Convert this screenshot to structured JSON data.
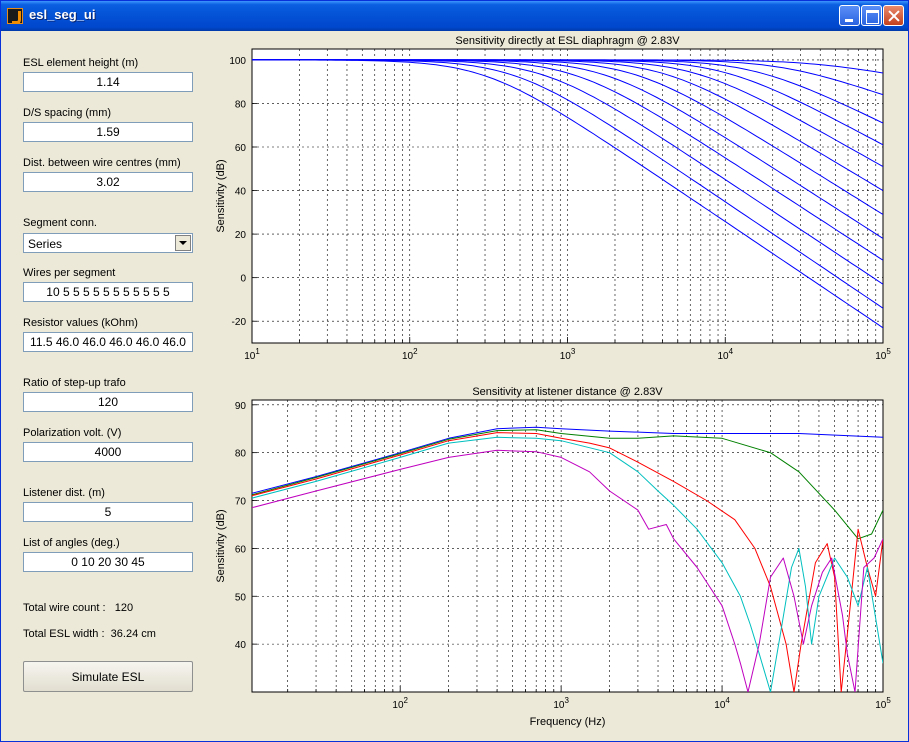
{
  "window": {
    "title": "esl_seg_ui"
  },
  "fields": {
    "height": {
      "label": "ESL element height (m)",
      "value": "1.14"
    },
    "ds": {
      "label": "D/S spacing (mm)",
      "value": "1.59"
    },
    "wire_dist": {
      "label": "Dist. between wire centres (mm)",
      "value": "3.02"
    },
    "segment_conn": {
      "label": "Segment conn.",
      "value": "Series"
    },
    "wires_per_seg": {
      "label": "Wires per segment",
      "value": "10 5 5 5 5 5 5 5 5 5 5 5"
    },
    "resistors": {
      "label": "Resistor values (kOhm)",
      "value": "11.5 46.0 46.0 46.0 46.0 46.0"
    },
    "trafo": {
      "label": "Ratio of step-up trafo",
      "value": "120"
    },
    "polarization": {
      "label": "Polarization volt. (V)",
      "value": "4000"
    },
    "listener": {
      "label": "Listener dist. (m)",
      "value": "5"
    },
    "angles": {
      "label": "List of angles (deg.)",
      "value": "0 10 20 30 45"
    }
  },
  "info": {
    "wire_count_label": "Total wire count :",
    "wire_count_value": "120",
    "width_label": "Total ESL width :",
    "width_value": "36.24 cm"
  },
  "simulate_label": "Simulate ESL",
  "chart_data": [
    {
      "type": "line",
      "title": "Sensitivity directly at ESL diaphragm @ 2.83V",
      "xlabel": "",
      "ylabel": "Sensitivity (dB)",
      "xscale": "log",
      "xlim": [
        10,
        100000
      ],
      "ylim": [
        -30,
        105
      ],
      "yticks": [
        -20,
        0,
        20,
        40,
        60,
        80,
        100
      ],
      "xticks": [
        "10^1",
        "10^2",
        "10^3",
        "10^4",
        "10^5"
      ],
      "grid": true,
      "color": "#0000ff",
      "series_model": "flat 100 dB up to ~100 Hz, rolling off above a per-curve corner; ends at 100 kHz listed below",
      "x": [
        100,
        300,
        1000,
        3000,
        10000,
        30000,
        100000
      ],
      "end_values": [
        -23,
        -14,
        -3,
        8,
        18,
        29,
        40,
        51,
        61,
        71,
        84,
        94
      ]
    },
    {
      "type": "line",
      "title": "Sensitivity at listener distance @ 2.83V",
      "xlabel": "Frequency (Hz)",
      "ylabel": "Sensitivity (dB)",
      "xscale": "log",
      "xlim": [
        12,
        100000
      ],
      "ylim": [
        30,
        91
      ],
      "yticks": [
        40,
        50,
        60,
        70,
        80,
        90
      ],
      "xticks": [
        "10^2",
        "10^3",
        "10^4",
        "10^5"
      ],
      "grid": true,
      "series": [
        {
          "name": "",
          "color": "#0000ff",
          "points": [
            [
              12,
              71.5
            ],
            [
              30,
              75
            ],
            [
              100,
              80
            ],
            [
              200,
              83
            ],
            [
              400,
              85
            ],
            [
              700,
              85.3
            ],
            [
              1000,
              85
            ],
            [
              2000,
              84.5
            ],
            [
              5000,
              84
            ],
            [
              10000,
              84
            ],
            [
              30000,
              84
            ],
            [
              100000,
              83.2
            ]
          ]
        },
        {
          "name": "",
          "color": "#008000",
          "points": [
            [
              12,
              71.2
            ],
            [
              30,
              74.8
            ],
            [
              100,
              79.8
            ],
            [
              200,
              82.8
            ],
            [
              400,
              84.6
            ],
            [
              700,
              84.8
            ],
            [
              1000,
              84
            ],
            [
              2000,
              83
            ],
            [
              3000,
              83
            ],
            [
              5000,
              83.5
            ],
            [
              10000,
              83
            ],
            [
              20000,
              80
            ],
            [
              30000,
              76
            ],
            [
              50000,
              68
            ],
            [
              70000,
              62
            ],
            [
              85000,
              63
            ],
            [
              100000,
              68
            ]
          ]
        },
        {
          "name": "",
          "color": "#ff0000",
          "points": [
            [
              12,
              71
            ],
            [
              30,
              74.5
            ],
            [
              100,
              79.5
            ],
            [
              200,
              82.5
            ],
            [
              400,
              84.2
            ],
            [
              700,
              84
            ],
            [
              1000,
              83
            ],
            [
              1500,
              82
            ],
            [
              2000,
              81
            ],
            [
              3000,
              78
            ],
            [
              5000,
              74
            ],
            [
              8000,
              70
            ],
            [
              12000,
              66
            ],
            [
              16000,
              60
            ],
            [
              20000,
              52
            ],
            [
              25000,
              40
            ],
            [
              28000,
              30
            ],
            [
              31000,
              40
            ],
            [
              38000,
              57
            ],
            [
              45000,
              61
            ],
            [
              50000,
              54
            ],
            [
              55000,
              30
            ],
            [
              60000,
              42
            ],
            [
              70000,
              64
            ],
            [
              80000,
              56
            ],
            [
              90000,
              50
            ],
            [
              100000,
              62
            ]
          ]
        },
        {
          "name": "",
          "color": "#00bfbf",
          "points": [
            [
              12,
              70.5
            ],
            [
              30,
              74
            ],
            [
              100,
              79
            ],
            [
              200,
              82
            ],
            [
              400,
              83.2
            ],
            [
              700,
              83
            ],
            [
              1000,
              82.5
            ],
            [
              2000,
              80
            ],
            [
              3000,
              76
            ],
            [
              4000,
              72
            ],
            [
              5000,
              69
            ],
            [
              7000,
              64
            ],
            [
              10000,
              57
            ],
            [
              13000,
              50
            ],
            [
              15000,
              44
            ],
            [
              17000,
              38
            ],
            [
              20000,
              30
            ],
            [
              23000,
              42
            ],
            [
              27000,
              56
            ],
            [
              30000,
              60
            ],
            [
              33000,
              52
            ],
            [
              36000,
              40
            ],
            [
              40000,
              50
            ],
            [
              50000,
              58
            ],
            [
              60000,
              54
            ],
            [
              70000,
              48
            ],
            [
              80000,
              56
            ],
            [
              100000,
              36
            ]
          ]
        },
        {
          "name": "",
          "color": "#bf00bf",
          "points": [
            [
              12,
              68.5
            ],
            [
              30,
              72
            ],
            [
              100,
              76.5
            ],
            [
              200,
              79
            ],
            [
              400,
              80.5
            ],
            [
              700,
              80.2
            ],
            [
              1000,
              79
            ],
            [
              1500,
              76
            ],
            [
              2000,
              72
            ],
            [
              3000,
              68
            ],
            [
              3500,
              64
            ],
            [
              4500,
              65
            ],
            [
              5000,
              62
            ],
            [
              7000,
              56
            ],
            [
              10000,
              48
            ],
            [
              12000,
              40
            ],
            [
              13000,
              36
            ],
            [
              14500,
              30
            ],
            [
              17000,
              40
            ],
            [
              20000,
              54
            ],
            [
              24000,
              58
            ],
            [
              28000,
              50
            ],
            [
              32000,
              40
            ],
            [
              36000,
              48
            ],
            [
              42000,
              55
            ],
            [
              48000,
              58
            ],
            [
              56000,
              46
            ],
            [
              60000,
              38
            ],
            [
              67000,
              30
            ],
            [
              76000,
              56
            ],
            [
              88000,
              58
            ],
            [
              100000,
              62
            ]
          ]
        }
      ]
    }
  ]
}
